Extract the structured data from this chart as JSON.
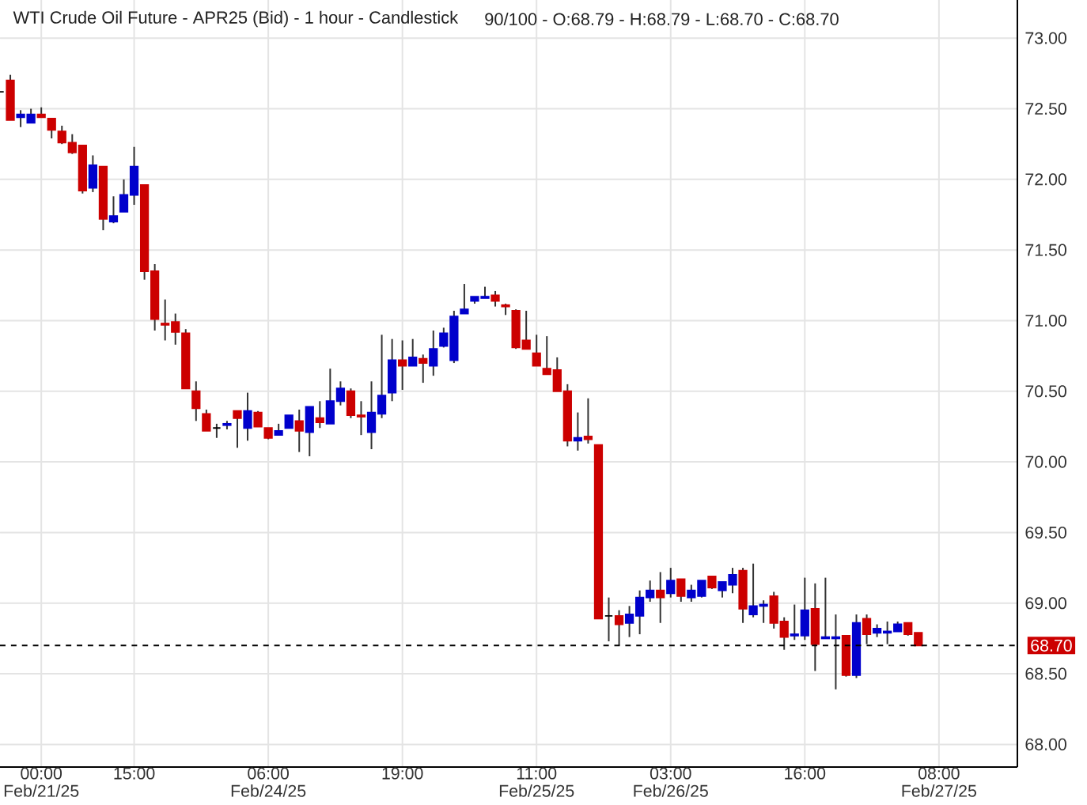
{
  "chart_data": {
    "type": "candlestick",
    "title": "WTI Crude Oil Future - APR25 (Bid) - 1 hour - Candlestick",
    "subtitle": "90/100 - O:68.79 - H:68.79 - L:68.70 - C:68.70",
    "categories": [
      null,
      null,
      null,
      null,
      "00:00 Feb/21/25",
      null,
      null,
      null,
      null,
      null,
      null,
      null,
      null,
      "15:00",
      null,
      null,
      null,
      null,
      null,
      null,
      null,
      null,
      null,
      null,
      null,
      null,
      "06:00 Feb/24/25",
      null,
      null,
      null,
      null,
      null,
      null,
      null,
      null,
      null,
      null,
      null,
      null,
      "19:00",
      null,
      null,
      null,
      null,
      null,
      null,
      null,
      null,
      null,
      null,
      null,
      null,
      "11:00 Feb/25/25",
      null,
      null,
      null,
      null,
      null,
      null,
      null,
      null,
      null,
      null,
      null,
      null,
      "03:00 Feb/26/25",
      null,
      null,
      null,
      null,
      null,
      null,
      null,
      null,
      null,
      null,
      null,
      null,
      "16:00",
      null,
      null,
      null,
      null,
      null,
      null,
      null,
      null,
      null,
      null,
      null,
      null,
      "08:00 Feb/27/25"
    ],
    "ohlc": [
      [
        72.62,
        72.62,
        72.62,
        72.62
      ],
      [
        72.7,
        72.74,
        72.42,
        72.42
      ],
      [
        72.44,
        72.49,
        72.37,
        72.46
      ],
      [
        72.4,
        72.5,
        72.4,
        72.46
      ],
      [
        72.46,
        72.51,
        72.44,
        72.44
      ],
      [
        72.43,
        72.43,
        72.29,
        72.35
      ],
      [
        72.34,
        72.38,
        72.25,
        72.26
      ],
      [
        72.26,
        72.32,
        72.18,
        72.19
      ],
      [
        72.24,
        72.24,
        71.9,
        71.92
      ],
      [
        71.94,
        72.17,
        71.91,
        72.1
      ],
      [
        72.09,
        72.09,
        71.64,
        71.72
      ],
      [
        71.7,
        71.88,
        71.69,
        71.74
      ],
      [
        71.77,
        72.0,
        71.77,
        71.89
      ],
      [
        71.89,
        72.23,
        71.82,
        72.09
      ],
      [
        71.96,
        71.96,
        71.29,
        71.35
      ],
      [
        71.35,
        71.4,
        70.93,
        71.01
      ],
      [
        70.98,
        71.15,
        70.86,
        70.97
      ],
      [
        70.99,
        71.05,
        70.83,
        70.92
      ],
      [
        70.91,
        70.94,
        70.52,
        70.52
      ],
      [
        70.5,
        70.57,
        70.29,
        70.38
      ],
      [
        70.34,
        70.37,
        70.22,
        70.22
      ],
      [
        70.24,
        70.27,
        70.17,
        70.24
      ],
      [
        70.26,
        70.29,
        70.23,
        70.27
      ],
      [
        70.36,
        70.36,
        70.1,
        70.31
      ],
      [
        70.24,
        70.49,
        70.15,
        70.36
      ],
      [
        70.35,
        70.36,
        70.25,
        70.25
      ],
      [
        70.24,
        70.24,
        70.16,
        70.17
      ],
      [
        70.19,
        70.27,
        70.19,
        70.22
      ],
      [
        70.24,
        70.33,
        70.24,
        70.33
      ],
      [
        70.29,
        70.37,
        70.07,
        70.22
      ],
      [
        70.21,
        70.39,
        70.04,
        70.39
      ],
      [
        70.31,
        70.43,
        70.24,
        70.28
      ],
      [
        70.27,
        70.66,
        70.27,
        70.43
      ],
      [
        70.43,
        70.57,
        70.4,
        70.52
      ],
      [
        70.5,
        70.52,
        70.31,
        70.33
      ],
      [
        70.33,
        70.43,
        70.19,
        70.32
      ],
      [
        70.21,
        70.57,
        70.09,
        70.35
      ],
      [
        70.34,
        70.9,
        70.31,
        70.47
      ],
      [
        70.49,
        70.87,
        70.43,
        70.72
      ],
      [
        70.72,
        70.86,
        70.51,
        70.68
      ],
      [
        70.68,
        70.87,
        70.68,
        70.74
      ],
      [
        70.73,
        70.76,
        70.56,
        70.7
      ],
      [
        70.68,
        70.93,
        70.61,
        70.8
      ],
      [
        70.82,
        70.95,
        70.81,
        70.91
      ],
      [
        70.72,
        71.07,
        70.7,
        71.03
      ],
      [
        71.05,
        71.26,
        71.05,
        71.08
      ],
      [
        71.14,
        71.17,
        71.12,
        71.17
      ],
      [
        71.16,
        71.24,
        71.16,
        71.17
      ],
      [
        71.18,
        71.21,
        71.1,
        71.14
      ],
      [
        71.11,
        71.12,
        71.04,
        71.1
      ],
      [
        71.07,
        71.08,
        70.8,
        70.81
      ],
      [
        70.86,
        71.07,
        70.8,
        70.8
      ],
      [
        70.77,
        70.9,
        70.68,
        70.68
      ],
      [
        70.66,
        70.89,
        70.62,
        70.62
      ],
      [
        70.65,
        70.74,
        70.5,
        70.5
      ],
      [
        70.5,
        70.55,
        70.11,
        70.15
      ],
      [
        70.15,
        70.35,
        70.08,
        70.17
      ],
      [
        70.18,
        70.45,
        70.13,
        70.16
      ],
      [
        70.12,
        70.12,
        68.89,
        68.89
      ],
      [
        68.91,
        69.04,
        68.73,
        68.91
      ],
      [
        68.91,
        68.95,
        68.7,
        68.85
      ],
      [
        68.86,
        68.98,
        68.76,
        68.92
      ],
      [
        68.91,
        69.09,
        68.78,
        69.04
      ],
      [
        69.04,
        69.16,
        69.01,
        69.09
      ],
      [
        69.09,
        69.22,
        68.86,
        69.04
      ],
      [
        69.07,
        69.25,
        69.04,
        69.16
      ],
      [
        69.17,
        69.17,
        69.01,
        69.05
      ],
      [
        69.04,
        69.13,
        69.01,
        69.09
      ],
      [
        69.05,
        69.16,
        69.04,
        69.16
      ],
      [
        69.19,
        69.19,
        69.1,
        69.11
      ],
      [
        69.09,
        69.15,
        69.04,
        69.15
      ],
      [
        69.13,
        69.25,
        69.07,
        69.2
      ],
      [
        69.23,
        69.25,
        68.86,
        68.96
      ],
      [
        68.92,
        69.28,
        68.9,
        68.98
      ],
      [
        68.98,
        69.02,
        68.86,
        68.99
      ],
      [
        69.05,
        69.08,
        68.82,
        68.86
      ],
      [
        68.87,
        68.9,
        68.67,
        68.76
      ],
      [
        68.77,
        68.99,
        68.74,
        68.78
      ],
      [
        68.77,
        69.18,
        68.74,
        68.95
      ],
      [
        68.96,
        69.14,
        68.52,
        68.71
      ],
      [
        68.75,
        69.18,
        68.75,
        68.76
      ],
      [
        68.75,
        68.92,
        68.39,
        68.76
      ],
      [
        68.77,
        68.77,
        68.48,
        68.49
      ],
      [
        68.49,
        68.92,
        68.47,
        68.86
      ],
      [
        68.89,
        68.92,
        68.71,
        68.78
      ],
      [
        68.79,
        68.85,
        68.76,
        68.82
      ],
      [
        68.79,
        68.87,
        68.71,
        68.8
      ],
      [
        68.8,
        68.87,
        68.8,
        68.85
      ],
      [
        68.86,
        68.86,
        68.77,
        68.78
      ],
      [
        68.79,
        68.79,
        68.7,
        68.7
      ],
      null,
      null
    ],
    "colors": [
      "#000000",
      "#cc0000",
      "#0000cc",
      "#0000cc",
      "#cc0000",
      "#cc0000",
      "#cc0000",
      "#cc0000",
      "#cc0000",
      "#0000cc",
      "#cc0000",
      "#0000cc",
      "#0000cc",
      "#0000cc",
      "#cc0000",
      "#cc0000",
      "#cc0000",
      "#cc0000",
      "#cc0000",
      "#cc0000",
      "#cc0000",
      "#000000",
      "#0000cc",
      "#cc0000",
      "#0000cc",
      "#cc0000",
      "#cc0000",
      "#0000cc",
      "#0000cc",
      "#cc0000",
      "#0000cc",
      "#cc0000",
      "#0000cc",
      "#0000cc",
      "#cc0000",
      "#cc0000",
      "#0000cc",
      "#0000cc",
      "#0000cc",
      "#cc0000",
      "#0000cc",
      "#cc0000",
      "#0000cc",
      "#0000cc",
      "#0000cc",
      "#0000cc",
      "#0000cc",
      "#0000cc",
      "#cc0000",
      "#cc0000",
      "#cc0000",
      "#cc0000",
      "#cc0000",
      "#cc0000",
      "#cc0000",
      "#cc0000",
      "#0000cc",
      "#cc0000",
      "#cc0000",
      "#000000",
      "#cc0000",
      "#0000cc",
      "#0000cc",
      "#0000cc",
      "#cc0000",
      "#0000cc",
      "#cc0000",
      "#0000cc",
      "#0000cc",
      "#cc0000",
      "#0000cc",
      "#0000cc",
      "#cc0000",
      "#0000cc",
      "#0000cc",
      "#cc0000",
      "#cc0000",
      "#0000cc",
      "#0000cc",
      "#cc0000",
      "#0000cc",
      "#0000cc",
      "#cc0000",
      "#0000cc",
      "#cc0000",
      "#0000cc",
      "#0000cc",
      "#0000cc",
      "#cc0000",
      "#cc0000",
      null,
      null
    ],
    "ylim": [
      67.84,
      73.27
    ],
    "yticks": [
      {
        "value": 68,
        "label": "68.00"
      },
      {
        "value": 68.5,
        "label": "68.50"
      },
      {
        "value": 69,
        "label": "69.00"
      },
      {
        "value": 69.5,
        "label": "69.50"
      },
      {
        "value": 70,
        "label": "70.00"
      },
      {
        "value": 70.5,
        "label": "70.50"
      },
      {
        "value": 71,
        "label": "71.00"
      },
      {
        "value": 71.5,
        "label": "71.50"
      },
      {
        "value": 72,
        "label": "72.00"
      },
      {
        "value": 72.5,
        "label": "72.50"
      },
      {
        "value": 73,
        "label": "73.00"
      }
    ],
    "grid": true,
    "ref_lines": [
      {
        "axis": "y",
        "value": 68.7,
        "label": "68.70",
        "color": "#000000",
        "line_style": "dashed"
      }
    ]
  }
}
